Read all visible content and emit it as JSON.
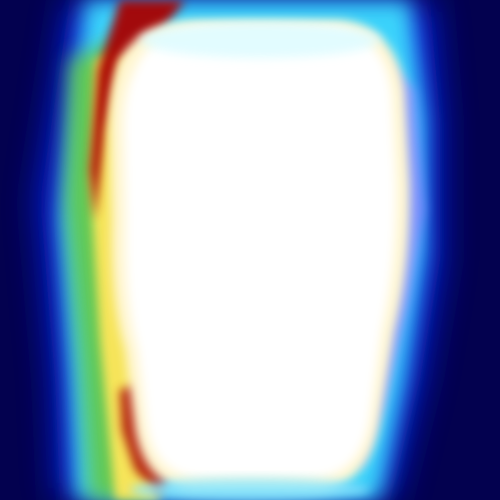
{
  "image": {
    "kind": "heatmap-overlay",
    "colormap": "jet",
    "colors": {
      "background": "#03014f",
      "outer_glow_blue": "#0a2cff",
      "cyan": "#3fe6ff",
      "green": "#64c84a",
      "yellow": "#ffe65a",
      "red": "#a80000",
      "dark_red": "#6a0000",
      "violet_edge": "#8e86ff",
      "hot_core": "#ffffff",
      "warm_core": "#fff6d2"
    }
  }
}
